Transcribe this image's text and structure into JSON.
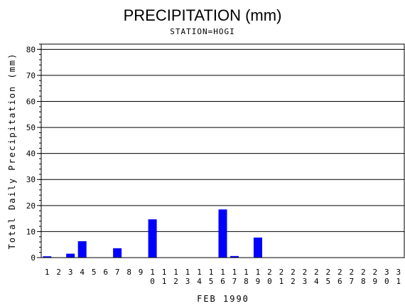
{
  "chart_data": {
    "type": "bar",
    "title": "PRECIPITATION (mm)",
    "subtitle": "STATION=HOGI",
    "xlabel": "FEB 1990",
    "ylabel": "Total Daily Precipitation (mm)",
    "ylim": [
      0,
      82
    ],
    "yticks": [
      0,
      10,
      20,
      30,
      40,
      50,
      60,
      70,
      80
    ],
    "grid": true,
    "bar_color": "#0000ff",
    "categories": [
      "1",
      "2",
      "3",
      "4",
      "5",
      "6",
      "7",
      "8",
      "9",
      "10",
      "11",
      "12",
      "13",
      "14",
      "15",
      "16",
      "17",
      "18",
      "19",
      "20",
      "21",
      "22",
      "23",
      "24",
      "25",
      "26",
      "27",
      "28",
      "29",
      "30",
      "31"
    ],
    "values": [
      0.5,
      0,
      1.5,
      6.3,
      0,
      0,
      3.6,
      0,
      0,
      14.7,
      0,
      0,
      0,
      0,
      0,
      18.5,
      0.6,
      0,
      7.7,
      0,
      0,
      0,
      0,
      0,
      0,
      0,
      0,
      0,
      0,
      0,
      0
    ]
  }
}
